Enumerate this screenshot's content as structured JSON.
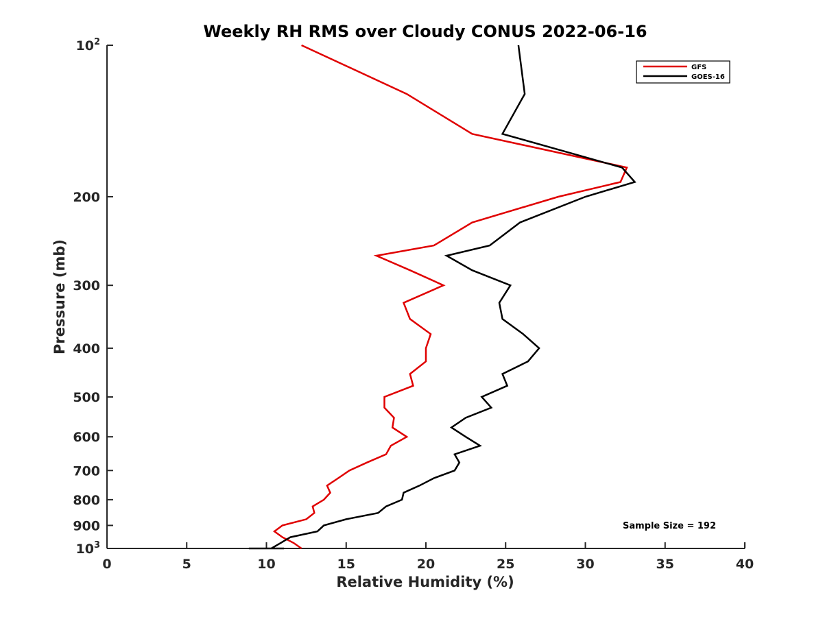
{
  "chart_data": {
    "type": "line",
    "title": "Weekly RH RMS over Cloudy CONUS 2022-06-16",
    "xlabel": "Relative Humidity (%)",
    "ylabel": "Pressure (mb)",
    "xlim": [
      0,
      40
    ],
    "ylim": [
      100,
      1000
    ],
    "yscale": "log",
    "y_reversed": true,
    "grid": false,
    "legend_position": "top-right",
    "x_ticks": [
      0,
      5,
      10,
      15,
      20,
      25,
      30,
      35,
      40
    ],
    "y_ticks": [
      {
        "value": 100,
        "base": "10",
        "exp": "2"
      },
      {
        "value": 200,
        "label": "200"
      },
      {
        "value": 300,
        "label": "300"
      },
      {
        "value": 400,
        "label": "400"
      },
      {
        "value": 500,
        "label": "500"
      },
      {
        "value": 600,
        "label": "600"
      },
      {
        "value": 700,
        "label": "700"
      },
      {
        "value": 800,
        "label": "800"
      },
      {
        "value": 900,
        "label": "900"
      },
      {
        "value": 1000,
        "base": "10",
        "exp": "3"
      }
    ],
    "annotation": "Sample Size = 192",
    "series": [
      {
        "name": "GFS",
        "color": "#e00000",
        "points": [
          [
            12.2,
            100
          ],
          [
            18.8,
            125
          ],
          [
            22.9,
            150
          ],
          [
            32.6,
            175
          ],
          [
            32.2,
            187
          ],
          [
            28.3,
            200
          ],
          [
            22.9,
            225
          ],
          [
            20.5,
            250
          ],
          [
            16.9,
            262
          ],
          [
            19.0,
            280
          ],
          [
            21.1,
            300
          ],
          [
            18.6,
            325
          ],
          [
            19.0,
            350
          ],
          [
            20.3,
            375
          ],
          [
            20.0,
            400
          ],
          [
            20.0,
            425
          ],
          [
            19.0,
            450
          ],
          [
            19.2,
            475
          ],
          [
            17.4,
            500
          ],
          [
            17.4,
            525
          ],
          [
            18.0,
            550
          ],
          [
            17.9,
            575
          ],
          [
            18.8,
            600
          ],
          [
            17.8,
            625
          ],
          [
            17.5,
            650
          ],
          [
            16.3,
            675
          ],
          [
            15.2,
            700
          ],
          [
            14.5,
            725
          ],
          [
            13.8,
            750
          ],
          [
            14.0,
            775
          ],
          [
            13.6,
            800
          ],
          [
            12.9,
            825
          ],
          [
            13.0,
            850
          ],
          [
            12.5,
            875
          ],
          [
            11.0,
            900
          ],
          [
            10.5,
            925
          ],
          [
            11.0,
            950
          ],
          [
            11.7,
            975
          ],
          [
            12.2,
            1000
          ]
        ]
      },
      {
        "name": "GOES-16",
        "color": "#000000",
        "points": [
          [
            25.8,
            100
          ],
          [
            26.2,
            125
          ],
          [
            24.8,
            150
          ],
          [
            32.3,
            175
          ],
          [
            33.1,
            187
          ],
          [
            30.0,
            200
          ],
          [
            25.9,
            225
          ],
          [
            24.0,
            250
          ],
          [
            21.3,
            262
          ],
          [
            22.9,
            280
          ],
          [
            25.3,
            300
          ],
          [
            24.6,
            325
          ],
          [
            24.8,
            350
          ],
          [
            26.1,
            375
          ],
          [
            27.1,
            400
          ],
          [
            26.4,
            425
          ],
          [
            24.8,
            450
          ],
          [
            25.1,
            475
          ],
          [
            23.5,
            500
          ],
          [
            24.1,
            525
          ],
          [
            22.5,
            550
          ],
          [
            21.6,
            575
          ],
          [
            22.5,
            600
          ],
          [
            23.4,
            625
          ],
          [
            21.8,
            650
          ],
          [
            22.1,
            675
          ],
          [
            21.8,
            700
          ],
          [
            20.5,
            725
          ],
          [
            19.6,
            750
          ],
          [
            18.6,
            775
          ],
          [
            18.5,
            800
          ],
          [
            17.5,
            825
          ],
          [
            17.0,
            850
          ],
          [
            15.0,
            875
          ],
          [
            13.6,
            900
          ],
          [
            13.2,
            925
          ],
          [
            11.5,
            950
          ],
          [
            10.9,
            975
          ],
          [
            10.3,
            1000
          ],
          [
            11.1,
            1025
          ],
          [
            11.1,
            1050
          ],
          [
            8.9,
            1075
          ]
        ]
      }
    ]
  }
}
